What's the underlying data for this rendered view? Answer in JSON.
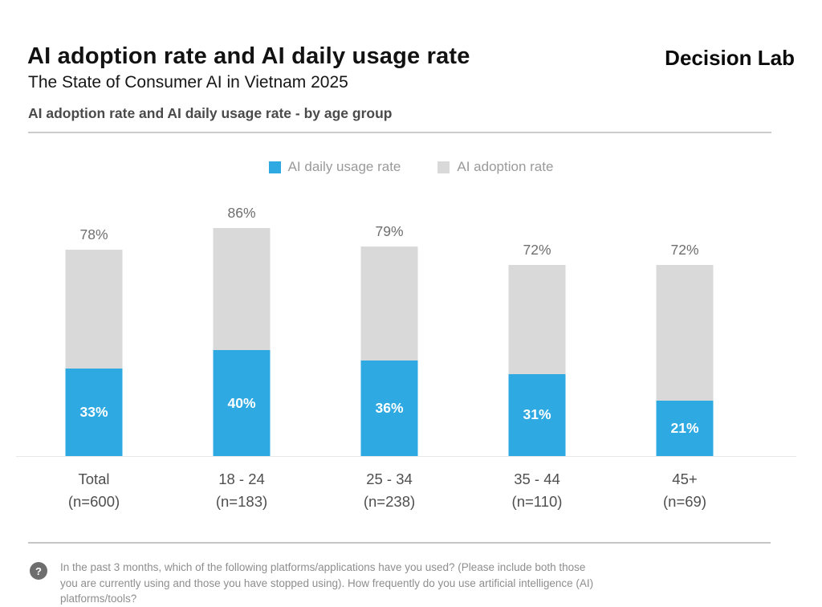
{
  "header": {
    "title": "AI adoption rate and AI daily usage rate",
    "subtitle": "The State of Consumer AI in Vietnam 2025",
    "brand": "Decision Lab",
    "section_title": "AI adoption rate and AI daily usage rate  - by age group"
  },
  "legend": [
    {
      "name": "daily-usage",
      "label": "AI daily usage rate",
      "color": "#2FA9E1"
    },
    {
      "name": "adoption",
      "label": "AI adoption rate",
      "color": "#D9D9D9"
    }
  ],
  "chart_data": {
    "type": "bar",
    "subtype": "overlaid-stacked-percentage",
    "title": "AI adoption rate and AI daily usage rate - by age group",
    "categories": [
      "Total",
      "18 - 24",
      "25 - 34",
      "35 - 44",
      "45+"
    ],
    "sample_sizes": [
      "(n=600)",
      "(n=183)",
      "(n=238)",
      "(n=110)",
      "(n=69)"
    ],
    "series": [
      {
        "name": "AI adoption rate",
        "color": "#D9D9D9",
        "values": [
          78,
          86,
          79,
          72,
          72
        ],
        "label_position": "above-bar",
        "label_color": "#6e6e6e"
      },
      {
        "name": "AI daily usage rate",
        "color": "#2FA9E1",
        "values": [
          33,
          40,
          36,
          31,
          21
        ],
        "label_position": "inside-bar",
        "label_color": "#ffffff"
      }
    ],
    "value_suffix": "%",
    "ylim": [
      0,
      100
    ],
    "y_axis_visible": false,
    "grid": false,
    "legend_position": "top-center"
  },
  "footnote": {
    "icon": "?",
    "text": "In the past 3 months, which of the following platforms/applications have you used? (Please include both those you are currently using and those you have stopped using). How frequently do you use artificial intelligence (AI) platforms/tools?"
  }
}
